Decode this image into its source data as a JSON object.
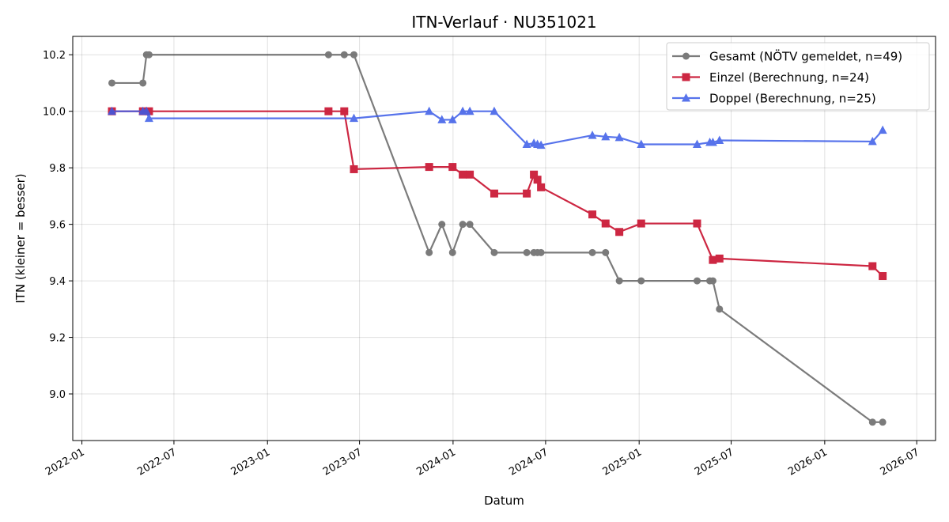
{
  "chart_data": {
    "type": "line",
    "title": "ITN-Verlauf · NU351021",
    "xlabel": "Datum",
    "ylabel": "ITN  (kleiner = besser)",
    "xlim": [
      "2021-12-14",
      "2026-08-07"
    ],
    "ylim": [
      8.835,
      10.265
    ],
    "grid": true,
    "legend_position": "top-right",
    "x_ticks": [
      {
        "date": "2022-01-01",
        "label": "2022-01"
      },
      {
        "date": "2022-07-01",
        "label": "2022-07"
      },
      {
        "date": "2023-01-01",
        "label": "2023-01"
      },
      {
        "date": "2023-07-01",
        "label": "2023-07"
      },
      {
        "date": "2024-01-01",
        "label": "2024-01"
      },
      {
        "date": "2024-07-01",
        "label": "2024-07"
      },
      {
        "date": "2025-01-01",
        "label": "2025-01"
      },
      {
        "date": "2025-07-01",
        "label": "2025-07"
      },
      {
        "date": "2026-01-01",
        "label": "2026-01"
      },
      {
        "date": "2026-07-01",
        "label": "2026-07"
      }
    ],
    "y_ticks": [
      {
        "value": 9.0,
        "label": "9.0"
      },
      {
        "value": 9.2,
        "label": "9.2"
      },
      {
        "value": 9.4,
        "label": "9.4"
      },
      {
        "value": 9.6,
        "label": "9.6"
      },
      {
        "value": 9.8,
        "label": "9.8"
      },
      {
        "value": 10.0,
        "label": "10.0"
      },
      {
        "value": 10.2,
        "label": "10.2"
      }
    ],
    "series": [
      {
        "name": "Gesamt (NÖTV gemeldet, n=49)",
        "color": "#444444",
        "opacity": 0.7,
        "marker": "circle",
        "points": [
          {
            "x": "2022-03-01",
            "y": 10.1
          },
          {
            "x": "2022-05-01",
            "y": 10.1
          },
          {
            "x": "2022-05-08",
            "y": 10.2
          },
          {
            "x": "2022-05-13",
            "y": 10.2
          },
          {
            "x": "2023-05-01",
            "y": 10.2
          },
          {
            "x": "2023-06-01",
            "y": 10.2
          },
          {
            "x": "2023-06-20",
            "y": 10.2
          },
          {
            "x": "2023-11-15",
            "y": 9.5
          },
          {
            "x": "2023-12-10",
            "y": 9.6
          },
          {
            "x": "2023-12-31",
            "y": 9.5
          },
          {
            "x": "2024-01-20",
            "y": 9.6
          },
          {
            "x": "2024-02-03",
            "y": 9.6
          },
          {
            "x": "2024-03-22",
            "y": 9.5
          },
          {
            "x": "2024-05-25",
            "y": 9.5
          },
          {
            "x": "2024-06-08",
            "y": 9.5
          },
          {
            "x": "2024-06-15",
            "y": 9.5
          },
          {
            "x": "2024-06-22",
            "y": 9.5
          },
          {
            "x": "2024-10-01",
            "y": 9.5
          },
          {
            "x": "2024-10-27",
            "y": 9.5
          },
          {
            "x": "2024-11-23",
            "y": 9.4
          },
          {
            "x": "2025-01-05",
            "y": 9.4
          },
          {
            "x": "2025-04-25",
            "y": 9.4
          },
          {
            "x": "2025-05-20",
            "y": 9.4
          },
          {
            "x": "2025-05-26",
            "y": 9.4
          },
          {
            "x": "2025-06-08",
            "y": 9.3
          },
          {
            "x": "2026-04-05",
            "y": 8.9
          },
          {
            "x": "2026-04-25",
            "y": 8.9
          }
        ]
      },
      {
        "name": "Einzel (Berechnung, n=24)",
        "color": "#c8102e",
        "opacity": 0.9,
        "marker": "square",
        "points": [
          {
            "x": "2022-03-01",
            "y": 10.0
          },
          {
            "x": "2022-05-01",
            "y": 10.0
          },
          {
            "x": "2022-05-13",
            "y": 10.0
          },
          {
            "x": "2023-05-01",
            "y": 10.0
          },
          {
            "x": "2023-06-01",
            "y": 10.0
          },
          {
            "x": "2023-06-20",
            "y": 9.795
          },
          {
            "x": "2023-11-15",
            "y": 9.803
          },
          {
            "x": "2023-12-31",
            "y": 9.803
          },
          {
            "x": "2024-01-20",
            "y": 9.776
          },
          {
            "x": "2024-02-03",
            "y": 9.776
          },
          {
            "x": "2024-03-22",
            "y": 9.709
          },
          {
            "x": "2024-05-25",
            "y": 9.709
          },
          {
            "x": "2024-06-08",
            "y": 9.776
          },
          {
            "x": "2024-06-15",
            "y": 9.758
          },
          {
            "x": "2024-06-22",
            "y": 9.731
          },
          {
            "x": "2024-10-01",
            "y": 9.635
          },
          {
            "x": "2024-10-27",
            "y": 9.603
          },
          {
            "x": "2024-11-23",
            "y": 9.573
          },
          {
            "x": "2025-01-05",
            "y": 9.603
          },
          {
            "x": "2025-04-25",
            "y": 9.603
          },
          {
            "x": "2025-05-26",
            "y": 9.474
          },
          {
            "x": "2025-06-08",
            "y": 9.479
          },
          {
            "x": "2026-04-05",
            "y": 9.452
          },
          {
            "x": "2026-04-25",
            "y": 9.417
          }
        ]
      },
      {
        "name": "Doppel (Berechnung, n=25)",
        "color": "#3a5be8",
        "opacity": 0.85,
        "marker": "triangle",
        "points": [
          {
            "x": "2022-03-01",
            "y": 10.0
          },
          {
            "x": "2022-05-01",
            "y": 10.0
          },
          {
            "x": "2022-05-08",
            "y": 10.0
          },
          {
            "x": "2022-05-13",
            "y": 9.975
          },
          {
            "x": "2023-06-20",
            "y": 9.975
          },
          {
            "x": "2023-11-15",
            "y": 10.0
          },
          {
            "x": "2023-12-10",
            "y": 9.97
          },
          {
            "x": "2023-12-31",
            "y": 9.97
          },
          {
            "x": "2024-01-20",
            "y": 10.0
          },
          {
            "x": "2024-02-03",
            "y": 10.0
          },
          {
            "x": "2024-03-22",
            "y": 10.0
          },
          {
            "x": "2024-05-25",
            "y": 9.883
          },
          {
            "x": "2024-06-08",
            "y": 9.887
          },
          {
            "x": "2024-06-15",
            "y": 9.883
          },
          {
            "x": "2024-06-22",
            "y": 9.88
          },
          {
            "x": "2024-10-01",
            "y": 9.915
          },
          {
            "x": "2024-10-27",
            "y": 9.91
          },
          {
            "x": "2024-11-23",
            "y": 9.907
          },
          {
            "x": "2025-01-05",
            "y": 9.883
          },
          {
            "x": "2025-04-25",
            "y": 9.883
          },
          {
            "x": "2025-05-20",
            "y": 9.89
          },
          {
            "x": "2025-05-26",
            "y": 9.89
          },
          {
            "x": "2025-06-08",
            "y": 9.897
          },
          {
            "x": "2026-04-05",
            "y": 9.893
          },
          {
            "x": "2026-04-25",
            "y": 9.933
          }
        ]
      }
    ]
  }
}
